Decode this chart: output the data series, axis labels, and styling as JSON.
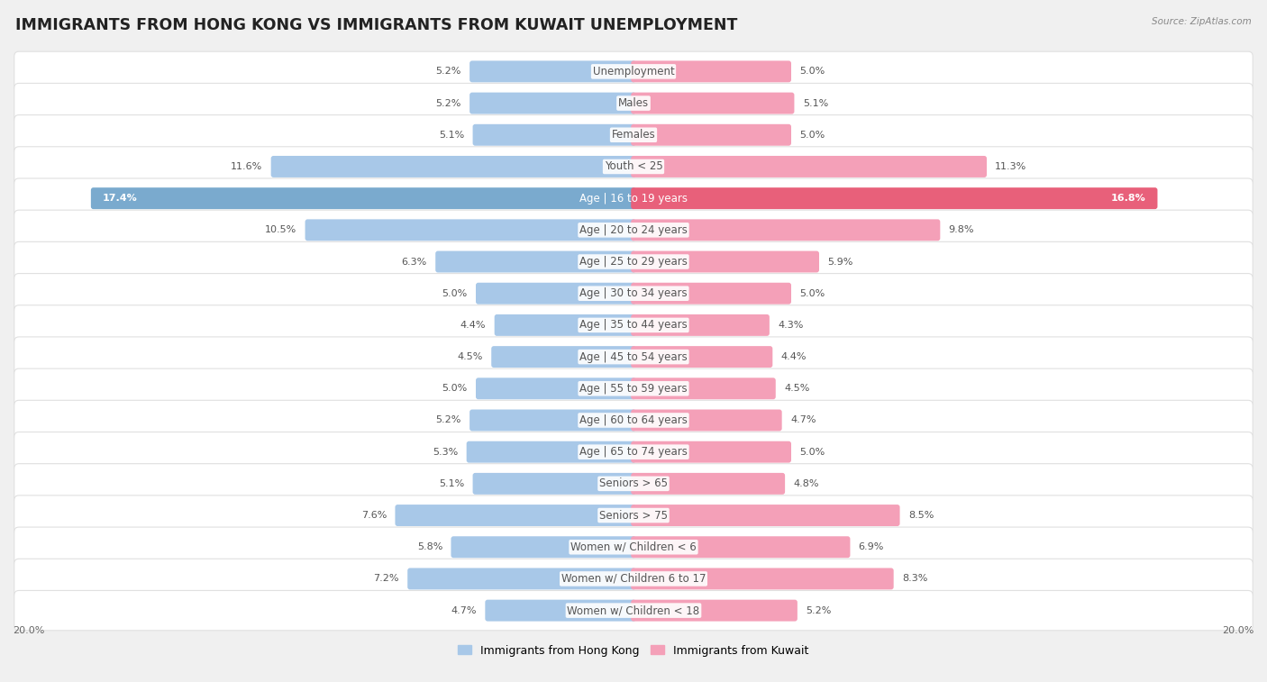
{
  "title": "IMMIGRANTS FROM HONG KONG VS IMMIGRANTS FROM KUWAIT UNEMPLOYMENT",
  "source": "Source: ZipAtlas.com",
  "categories": [
    "Unemployment",
    "Males",
    "Females",
    "Youth < 25",
    "Age | 16 to 19 years",
    "Age | 20 to 24 years",
    "Age | 25 to 29 years",
    "Age | 30 to 34 years",
    "Age | 35 to 44 years",
    "Age | 45 to 54 years",
    "Age | 55 to 59 years",
    "Age | 60 to 64 years",
    "Age | 65 to 74 years",
    "Seniors > 65",
    "Seniors > 75",
    "Women w/ Children < 6",
    "Women w/ Children 6 to 17",
    "Women w/ Children < 18"
  ],
  "hong_kong": [
    5.2,
    5.2,
    5.1,
    11.6,
    17.4,
    10.5,
    6.3,
    5.0,
    4.4,
    4.5,
    5.0,
    5.2,
    5.3,
    5.1,
    7.6,
    5.8,
    7.2,
    4.7
  ],
  "kuwait": [
    5.0,
    5.1,
    5.0,
    11.3,
    16.8,
    9.8,
    5.9,
    5.0,
    4.3,
    4.4,
    4.5,
    4.7,
    5.0,
    4.8,
    8.5,
    6.9,
    8.3,
    5.2
  ],
  "hk_color": "#a8c8e8",
  "kw_color": "#f4a0b8",
  "hk_highlight": "#7aaace",
  "kw_highlight": "#e8607a",
  "axis_max": 20.0,
  "bg_color": "#f0f0f0",
  "row_bg_white": "#ffffff",
  "bar_height": 0.52,
  "title_fontsize": 12.5,
  "label_fontsize": 8.5,
  "value_fontsize": 8.0
}
